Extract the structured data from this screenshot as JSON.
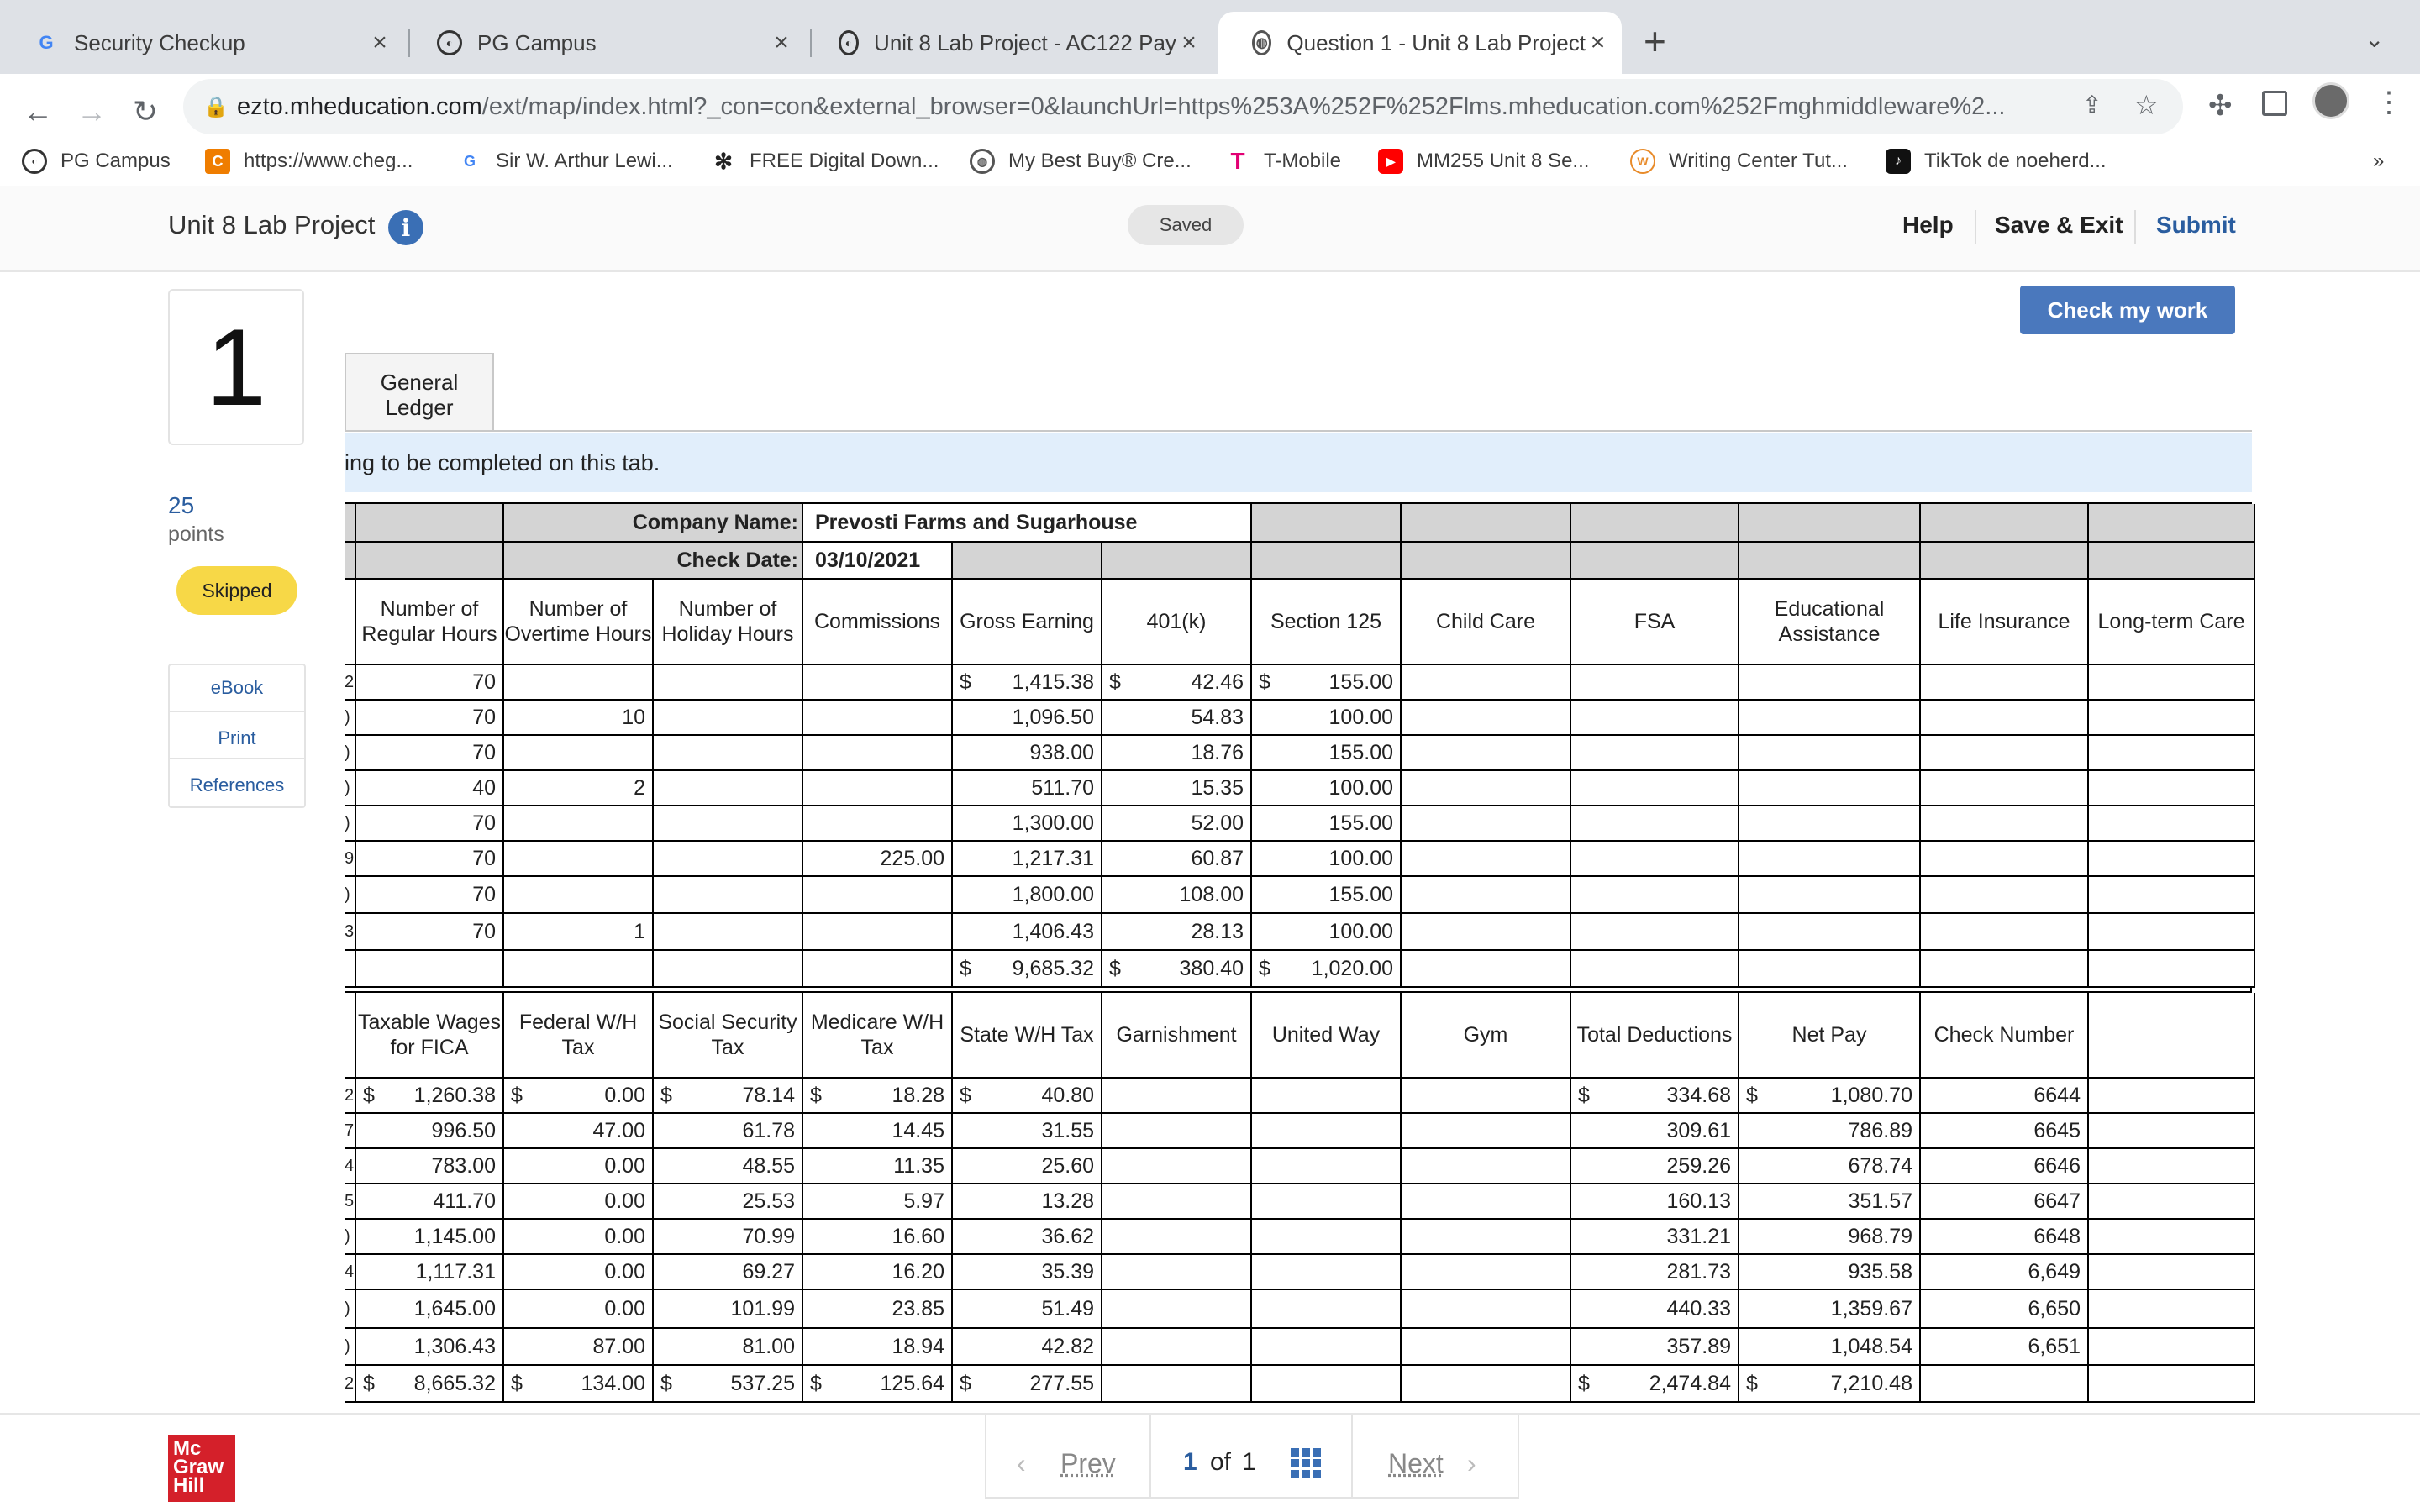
{
  "browser": {
    "tabs": [
      {
        "title": "Security Checkup",
        "icon": "google-icon"
      },
      {
        "title": "PG Campus",
        "icon": "pg-campus-icon"
      },
      {
        "title": "Unit 8 Lab Project - AC122 Pay",
        "icon": "pg-campus-icon"
      },
      {
        "title": "Question 1 - Unit 8 Lab Project",
        "icon": "globe-icon"
      }
    ],
    "url_host": "ezto.mheducation.com",
    "url_rest": "/ext/map/index.html?_con=con&external_browser=0&launchUrl=https%253A%252F%252Flms.mheducation.com%252Fmghmiddleware%2...",
    "bookmarks": [
      "PG Campus",
      "https://www.cheg...",
      "Sir W. Arthur Lewi...",
      "FREE Digital Down...",
      "My Best Buy® Cre...",
      "T-Mobile",
      "MM255 Unit 8 Se...",
      "Writing Center Tut...",
      "TikTok de noeherd..."
    ],
    "more": "»"
  },
  "app": {
    "title": "Unit 8 Lab Project",
    "saved": "Saved",
    "help": "Help",
    "save_exit": "Save & Exit",
    "submit": "Submit",
    "check": "Check my work"
  },
  "question": {
    "number": "1",
    "points": "25",
    "points_label": "points",
    "status": "Skipped",
    "links": [
      "eBook",
      "Print",
      "References"
    ]
  },
  "sheet": {
    "tab": "General Ledger",
    "banner": "ing to be completed on this tab.",
    "company_label": "Company Name:",
    "company": "Prevosti Farms and Sugarhouse",
    "date_label": "Check Date:",
    "date": "03/10/2021",
    "headers1": [
      "Number of Regular Hours",
      "Number of Overtime Hours",
      "Number of Holiday Hours",
      "Commissions",
      "Gross Earning",
      "401(k)",
      "Section 125",
      "Child Care",
      "FSA",
      "Educational Assistance",
      "Life Insurance",
      "Long-term Care"
    ],
    "edge1": [
      "2",
      ")",
      ")",
      ")",
      ")",
      "9",
      ")",
      "3",
      ""
    ],
    "rows1": [
      [
        "70",
        "",
        "",
        "",
        "1,415.38",
        "42.46",
        "155.00"
      ],
      [
        "70",
        "10",
        "",
        "",
        "1,096.50",
        "54.83",
        "100.00"
      ],
      [
        "70",
        "",
        "",
        "",
        "938.00",
        "18.76",
        "155.00"
      ],
      [
        "40",
        "2",
        "",
        "",
        "511.70",
        "15.35",
        "100.00"
      ],
      [
        "70",
        "",
        "",
        "",
        "1,300.00",
        "52.00",
        "155.00"
      ],
      [
        "70",
        "",
        "",
        "225.00",
        "1,217.31",
        "60.87",
        "100.00"
      ],
      [
        "70",
        "",
        "",
        "",
        "1,800.00",
        "108.00",
        "155.00"
      ],
      [
        "70",
        "1",
        "",
        "",
        "1,406.43",
        "28.13",
        "100.00"
      ],
      [
        "",
        "",
        "",
        "",
        "9,685.32",
        "380.40",
        "1,020.00"
      ]
    ],
    "headers2": [
      "Taxable Wages for FICA",
      "Federal W/H Tax",
      "Social Security Tax",
      "Medicare W/H Tax",
      "State W/H Tax",
      "Garnishment",
      "United Way",
      "Gym",
      "Total Deductions",
      "Net Pay",
      "Check Number"
    ],
    "edge2": [
      "2",
      "7",
      "4",
      "5",
      ")",
      "4",
      ")",
      ")",
      "2"
    ],
    "rows2": [
      [
        "1,260.38",
        "0.00",
        "78.14",
        "18.28",
        "40.80",
        "",
        "",
        "",
        "334.68",
        "1,080.70",
        "6644"
      ],
      [
        "996.50",
        "47.00",
        "61.78",
        "14.45",
        "31.55",
        "",
        "",
        "",
        "309.61",
        "786.89",
        "6645"
      ],
      [
        "783.00",
        "0.00",
        "48.55",
        "11.35",
        "25.60",
        "",
        "",
        "",
        "259.26",
        "678.74",
        "6646"
      ],
      [
        "411.70",
        "0.00",
        "25.53",
        "5.97",
        "13.28",
        "",
        "",
        "",
        "160.13",
        "351.57",
        "6647"
      ],
      [
        "1,145.00",
        "0.00",
        "70.99",
        "16.60",
        "36.62",
        "",
        "",
        "",
        "331.21",
        "968.79",
        "6648"
      ],
      [
        "1,117.31",
        "0.00",
        "69.27",
        "16.20",
        "35.39",
        "",
        "",
        "",
        "281.73",
        "935.58",
        "6,649"
      ],
      [
        "1,645.00",
        "0.00",
        "101.99",
        "23.85",
        "51.49",
        "",
        "",
        "",
        "440.33",
        "1,359.67",
        "6,650"
      ],
      [
        "1,306.43",
        "87.00",
        "81.00",
        "18.94",
        "42.82",
        "",
        "",
        "",
        "357.89",
        "1,048.54",
        "6,651"
      ],
      [
        "8,665.32",
        "134.00",
        "537.25",
        "125.64",
        "277.55",
        "",
        "",
        "",
        "2,474.84",
        "7,210.48",
        ""
      ]
    ],
    "currency": "$"
  },
  "footer": {
    "logo_lines": [
      "Mc",
      "Graw",
      "Hill"
    ],
    "prev": "Prev",
    "page_current": "1",
    "page_of": "of",
    "page_total": "1",
    "next": "Next"
  }
}
